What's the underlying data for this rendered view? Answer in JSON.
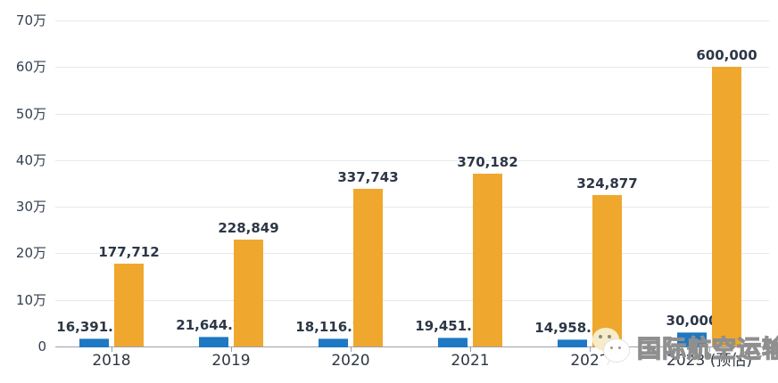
{
  "chart_data": {
    "type": "bar",
    "categories": [
      "2018",
      "2019",
      "2020",
      "2021",
      "2022",
      "2023 (预估)"
    ],
    "series": [
      {
        "id": "blue",
        "color": "#1e78c3",
        "values": [
          16391.18,
          21644.78,
          18116.72,
          19451.22,
          14958.82,
          30000
        ],
        "labels": [
          "16,391.18",
          "21,644.78",
          "18,116.72",
          "19,451.22",
          "14,958.82",
          "30,000"
        ]
      },
      {
        "id": "orange",
        "color": "#efa82d",
        "values": [
          177712,
          228849,
          337743,
          370182,
          324877,
          600000
        ],
        "labels": [
          "177,712",
          "228,849",
          "337,743",
          "370,182",
          "324,877",
          "600,000"
        ]
      }
    ],
    "title": "",
    "xlabel": "",
    "ylabel": "",
    "ylim": [
      0,
      700000
    ],
    "ytick_step": 100000,
    "ytick_labels": [
      "0",
      "10万",
      "20万",
      "30万",
      "40万",
      "50万",
      "60万",
      "70万"
    ],
    "grid": true,
    "legend": null,
    "grid_color": "#e5e8eb",
    "axis_color": "#9aa0a6",
    "axis_label_color": "#33404e",
    "value_label_color": "#2d3746"
  },
  "watermark": {
    "text": "国际航空运输",
    "icon": "wechat-icon",
    "color": "#8f8f8f"
  }
}
